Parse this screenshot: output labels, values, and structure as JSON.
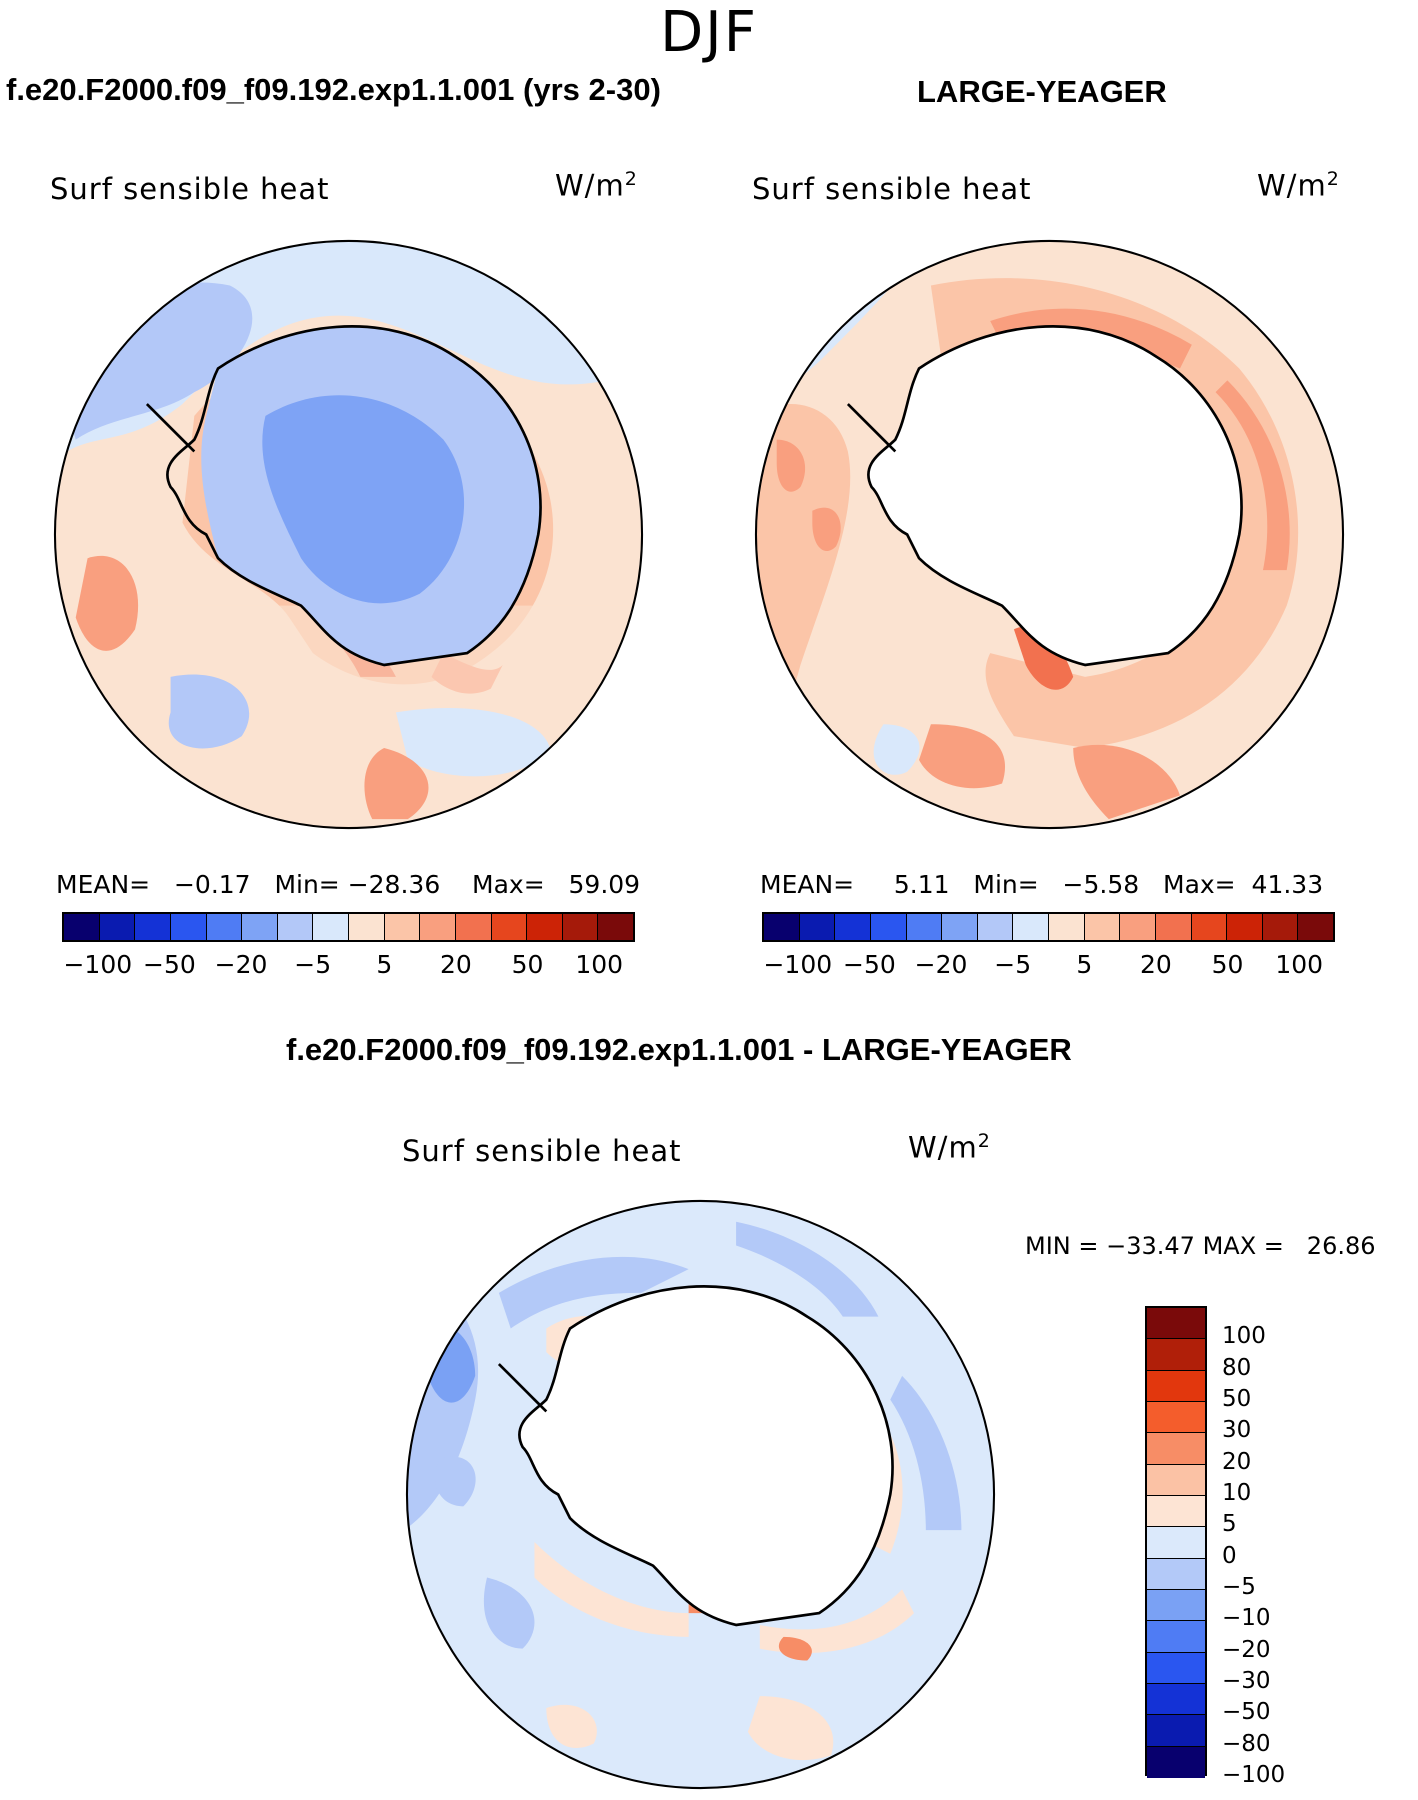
{
  "page": {
    "season": "DJF",
    "left_title": "f.e20.F2000.f09_f09.192.exp1.1.001 (yrs 2-30)",
    "right_title": "LARGE-YEAGER",
    "diff_title": "f.e20.F2000.f09_f09.192.exp1.1.001 - LARGE-YEAGER"
  },
  "panels": {
    "left": {
      "variable": "Surf sensible heat",
      "units": "W/m",
      "units_exp": "2",
      "mean_label": "MEAN=",
      "mean_value": "−0.17",
      "min_label": "Min=",
      "min_value": "−28.36",
      "max_label": "Max=",
      "max_value": "59.09"
    },
    "right": {
      "variable": "Surf sensible heat",
      "units": "W/m",
      "units_exp": "2",
      "mean_label": "MEAN=",
      "mean_value": "5.11",
      "min_label": "Min=",
      "min_value": "−5.58",
      "max_label": "Max=",
      "max_value": "41.33"
    },
    "diff": {
      "variable": "Surf sensible heat",
      "units": "W/m",
      "units_exp": "2",
      "min_label": "MIN =",
      "min_value": "−33.47",
      "max_label": "MAX =",
      "max_value": "26.86"
    }
  },
  "colorbar_abs": {
    "colors": [
      "#08006e",
      "#0a1bb0",
      "#1432d6",
      "#2a56f0",
      "#4f7cf4",
      "#7ea3f5",
      "#b3c8f8",
      "#d9e8fb",
      "#fbe3d1",
      "#fbc5a8",
      "#f99f7f",
      "#f2714f",
      "#e6461e",
      "#cc2306",
      "#a51a0a",
      "#7a0a0a"
    ],
    "tick_labels": [
      "−100",
      "−50",
      "−20",
      "−5",
      "5",
      "20",
      "50",
      "100"
    ]
  },
  "colorbar_diff": {
    "colors": [
      "#7a0a0a",
      "#b01f09",
      "#e2370d",
      "#f45d2c",
      "#f78d66",
      "#fbc2a5",
      "#fde4d4",
      "#dbe9fb",
      "#b3c9f8",
      "#7aa1f4",
      "#4f7cf4",
      "#2a56f0",
      "#1432d6",
      "#0a1bb0",
      "#08006e"
    ],
    "labels": [
      "100",
      "80",
      "50",
      "30",
      "20",
      "10",
      "5",
      "0",
      "−5",
      "−10",
      "−20",
      "−30",
      "−50",
      "−80",
      "−100"
    ]
  }
}
